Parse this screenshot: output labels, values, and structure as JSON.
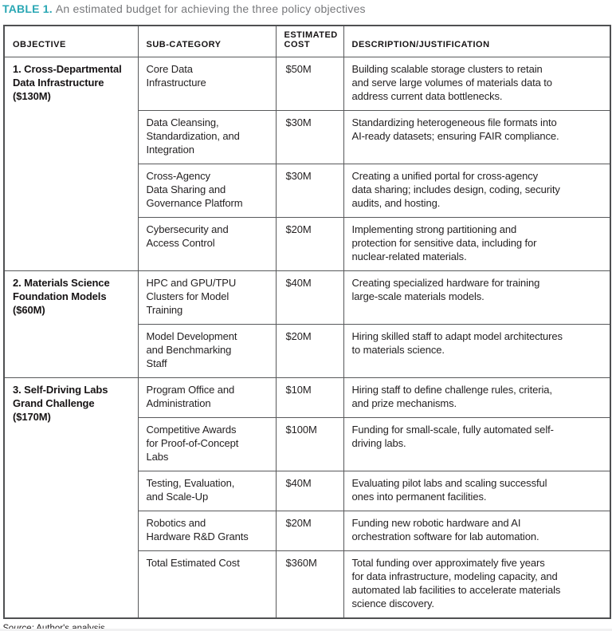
{
  "title": {
    "label": "TABLE 1.",
    "caption": "An estimated budget for achieving the three policy objectives"
  },
  "colors": {
    "accent_teal": "#2aa7b4",
    "caption_gray": "#77787b",
    "border_gray": "#58595b",
    "text_black": "#221f20"
  },
  "table": {
    "headers": {
      "objective": "OBJECTIVE",
      "sub_category": "SUB-CATEGORY",
      "estimated_cost": "ESTIMATED\nCOST",
      "description": "DESCRIPTION/JUSTIFICATION"
    },
    "groups": [
      {
        "objective": "1. Cross-Departmental\nData Infrastructure\n($130M)",
        "rows": [
          {
            "sub_category": "Core Data\nInfrastructure",
            "cost": "$50M",
            "description": "Building scalable storage clusters to retain\nand serve large volumes of materials data to\naddress current data bottlenecks."
          },
          {
            "sub_category": "Data Cleansing,\nStandardization, and\nIntegration",
            "cost": "$30M",
            "description": "Standardizing heterogeneous file formats into\nAI-ready datasets; ensuring FAIR compliance."
          },
          {
            "sub_category": "Cross-Agency\nData Sharing and\nGovernance Platform",
            "cost": "$30M",
            "description": "Creating a unified portal for cross-agency\ndata sharing; includes design, coding, security\naudits, and hosting."
          },
          {
            "sub_category": "Cybersecurity and\nAccess Control",
            "cost": "$20M",
            "description": "Implementing strong partitioning and\nprotection for sensitive data, including for\nnuclear-related materials."
          }
        ]
      },
      {
        "objective": "2. Materials Science\nFoundation Models\n($60M)",
        "rows": [
          {
            "sub_category": "HPC and GPU/TPU\nClusters for Model\nTraining",
            "cost": "$40M",
            "description": "Creating specialized hardware for training\nlarge-scale materials models."
          },
          {
            "sub_category": "Model Development\nand Benchmarking\nStaff",
            "cost": "$20M",
            "description": "Hiring skilled staff to adapt model architectures\nto materials science."
          }
        ]
      },
      {
        "objective": "3. Self-Driving Labs\nGrand Challenge\n($170M)",
        "rows": [
          {
            "sub_category": "Program Office and\nAdministration",
            "cost": "$10M",
            "description": "Hiring staff to define challenge rules, criteria,\nand prize mechanisms."
          },
          {
            "sub_category": "Competitive Awards\nfor Proof-of-Concept\nLabs",
            "cost": "$100M",
            "description": "Funding for small-scale, fully automated self-\ndriving labs."
          },
          {
            "sub_category": "Testing, Evaluation,\nand Scale-Up",
            "cost": "$40M",
            "description": "Evaluating pilot labs and scaling successful\nones into permanent facilities."
          },
          {
            "sub_category": "Robotics and\nHardware R&D Grants",
            "cost": "$20M",
            "description": "Funding new robotic hardware and AI\norchestration software for lab automation."
          },
          {
            "sub_category": "Total Estimated Cost",
            "cost": "$360M",
            "description": "Total funding over approximately five years\nfor data infrastructure, modeling capacity, and\nautomated lab facilities to accelerate materials\nscience discovery."
          }
        ]
      }
    ]
  },
  "source": {
    "label": "Source:",
    "text": "Author's analysis"
  }
}
